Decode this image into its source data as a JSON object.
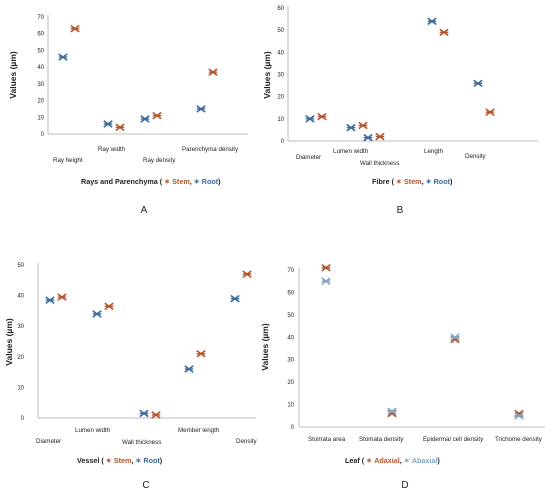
{
  "colors": {
    "stem": "#b5522a",
    "root": "#3c6a9c",
    "adaxial": "#b5522a",
    "abaxial": "#7fa4c6"
  },
  "chart_data": [
    {
      "type": "scatter",
      "panel_label": "A",
      "ylabel": "Values (µm)",
      "ylim": [
        0,
        70
      ],
      "yticks": [
        "0",
        "10",
        "20",
        "30",
        "40",
        "50",
        "60",
        "70"
      ],
      "categories": [
        "Ray height",
        "Ray width",
        "Ray density",
        "Parenchyma density"
      ],
      "legend": {
        "prefix": "Rays and Parenchyma (",
        "sep": ",",
        "suffix": ")"
      },
      "series": [
        {
          "name": "Stem",
          "color": "#b5522a",
          "values": [
            63,
            4,
            11,
            37
          ]
        },
        {
          "name": "Root",
          "color": "#3c6a9c",
          "values": [
            46,
            6,
            9,
            15
          ]
        }
      ]
    },
    {
      "type": "scatter",
      "panel_label": "B",
      "ylabel": "Values (µm)",
      "ylim": [
        0,
        60
      ],
      "yticks": [
        "0",
        "10",
        "20",
        "30",
        "40",
        "50",
        "60"
      ],
      "categories": [
        "Diameter",
        "Lumen width",
        "Wall thickness",
        "Length",
        "Density"
      ],
      "legend": {
        "prefix": "Fibre (",
        "sep": ",",
        "suffix": ")"
      },
      "series": [
        {
          "name": "Stem",
          "color": "#b5522a",
          "values": [
            11,
            7,
            2,
            49,
            13
          ]
        },
        {
          "name": "Root",
          "color": "#3c6a9c",
          "values": [
            10,
            6,
            1.5,
            54,
            26
          ]
        }
      ]
    },
    {
      "type": "scatter",
      "panel_label": "C",
      "ylabel": "Values (µm)",
      "ylim": [
        0,
        50
      ],
      "yticks": [
        "0",
        "10",
        "20",
        "30",
        "40",
        "50"
      ],
      "categories": [
        "Diameter",
        "Lumen width",
        "Wall thickness",
        "Member length",
        "Density"
      ],
      "legend": {
        "prefix": "Vessel (",
        "sep": ",",
        "suffix": ")"
      },
      "series": [
        {
          "name": "Stem",
          "color": "#b5522a",
          "values": [
            39.5,
            36.5,
            1,
            21,
            47
          ]
        },
        {
          "name": "Root",
          "color": "#3c6a9c",
          "values": [
            38.5,
            34,
            1.5,
            16,
            39
          ]
        }
      ]
    },
    {
      "type": "scatter",
      "panel_label": "D",
      "ylabel": "Values (µm)",
      "ylim": [
        0,
        70
      ],
      "yticks": [
        "0",
        "10",
        "20",
        "30",
        "40",
        "50",
        "60",
        "70"
      ],
      "categories": [
        "Stomata area",
        "Stomata density",
        "Epidermal cell density",
        "Trichome density"
      ],
      "legend": {
        "prefix": "Leaf (",
        "sep": ",",
        "suffix": ")"
      },
      "series": [
        {
          "name": "Adaxial",
          "color": "#b5522a",
          "values": [
            71,
            6,
            39,
            6
          ]
        },
        {
          "name": "Abaxial",
          "color": "#7fa4c6",
          "values": [
            65,
            7,
            40,
            5
          ]
        }
      ]
    }
  ]
}
